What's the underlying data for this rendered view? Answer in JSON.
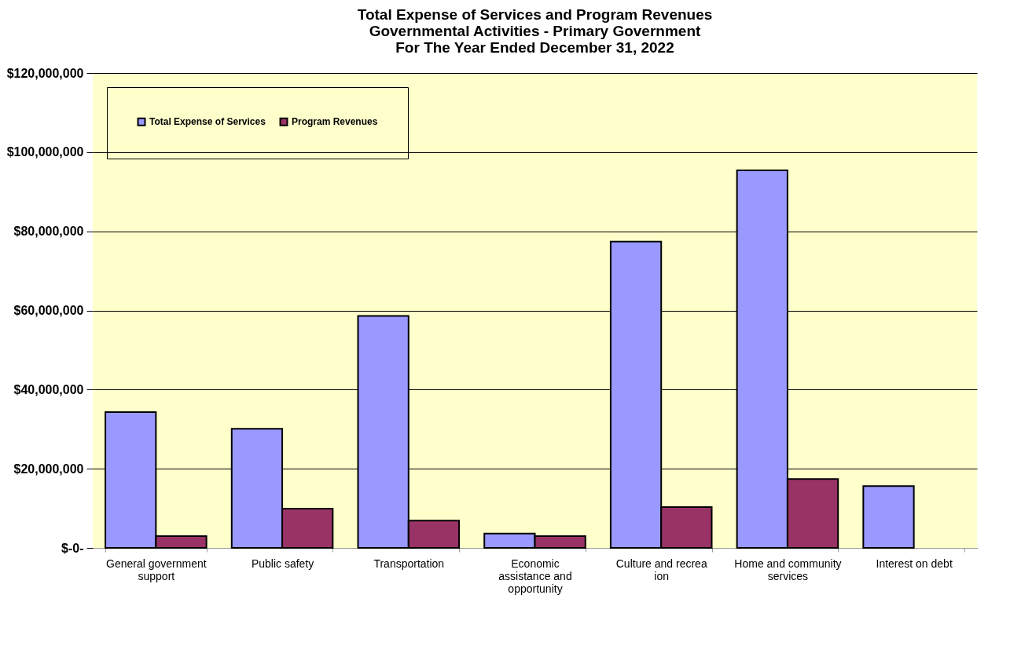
{
  "chart_data": {
    "type": "bar",
    "title": "Total Expense of Services and Program Revenues\nGovernmental Activities - Primary Government\nFor The Year Ended December 31, 2022",
    "categories": [
      "General government support",
      "Public safety",
      "Transportation",
      "Economic assistance and opportunity",
      "Culture and recrea ion",
      "Home and community services",
      "Interest on debt"
    ],
    "series": [
      {
        "name": "Total Expense of Services",
        "color": "#9999ff",
        "values": [
          34300000,
          30100000,
          58600000,
          3600000,
          77400000,
          95400000,
          15600000
        ]
      },
      {
        "name": "Program Revenues",
        "color": "#993366",
        "values": [
          3000000,
          9900000,
          6900000,
          3000000,
          10300000,
          17400000,
          null
        ]
      }
    ],
    "ylim": [
      0,
      120000000
    ],
    "yticks": [
      {
        "value": 0,
        "label": "$-0-"
      },
      {
        "value": 20000000,
        "label": "$20,000,000"
      },
      {
        "value": 40000000,
        "label": "$40,000,000"
      },
      {
        "value": 60000000,
        "label": "$60,000,000"
      },
      {
        "value": 80000000,
        "label": "$80,000,000"
      },
      {
        "value": 100000000,
        "label": "$100,000,000"
      },
      {
        "value": 120000000,
        "label": "$120,000,000"
      }
    ],
    "grid": "y",
    "legend": "top left"
  }
}
